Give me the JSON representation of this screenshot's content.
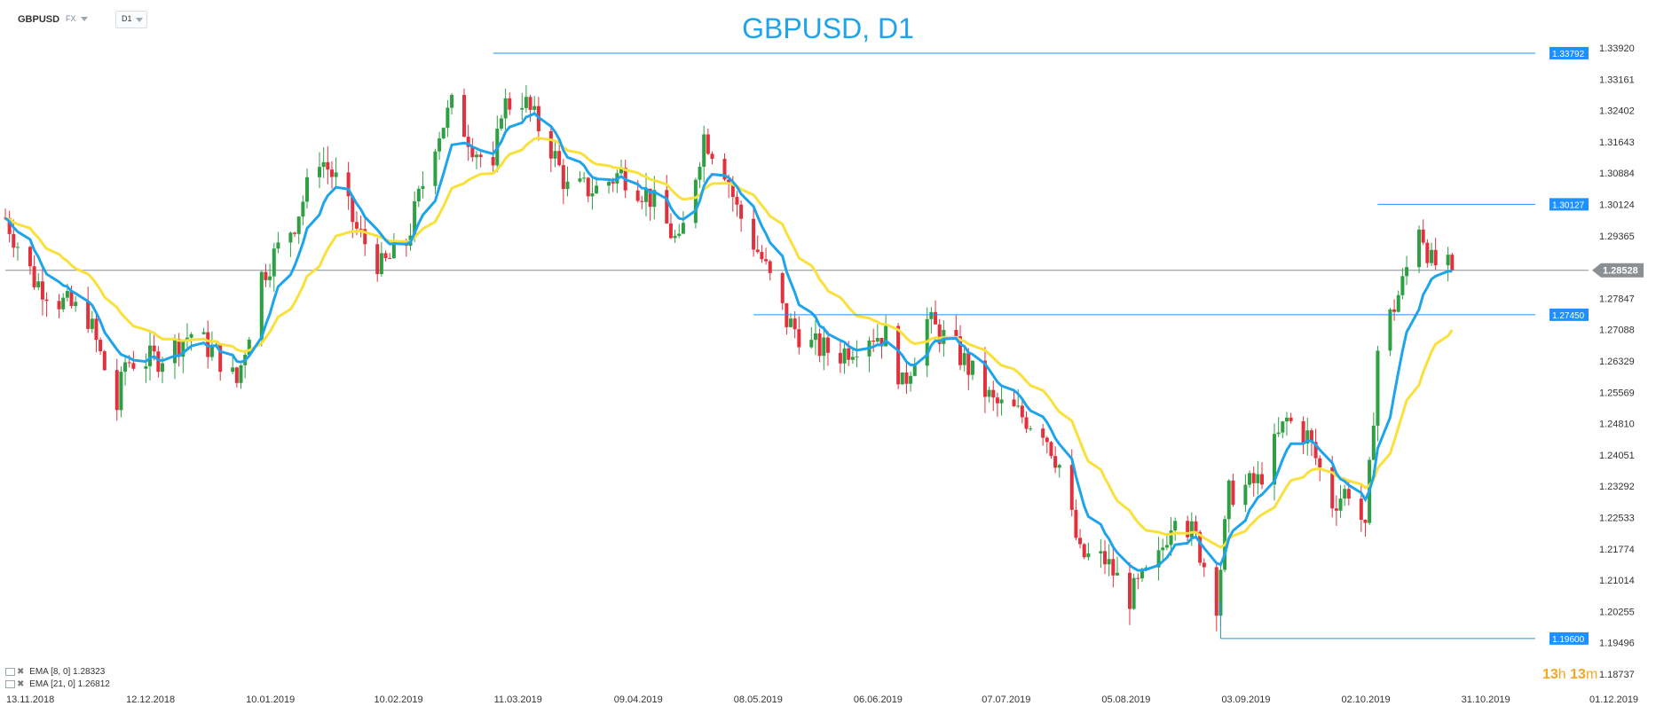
{
  "toolbar": {
    "symbol": "GBPUSD",
    "market": "FX",
    "timeframe": "D1"
  },
  "legend": [
    {
      "label": "EMA",
      "params": "[8, 0]",
      "value": "1.28323",
      "color": "#1ea4ea"
    },
    {
      "label": "EMA",
      "params": "[21, 0]",
      "value": "1.26812",
      "color": "#f9e03a"
    }
  ],
  "timer": {
    "hours": "13",
    "hours_unit": "h",
    "minutes": "13",
    "minutes_unit": "m"
  },
  "colors": {
    "up": "#2ea043",
    "down": "#e0313c",
    "ema_fast": "#1ea4ea",
    "ema_slow": "#f9e03a",
    "level": "#1e90ff",
    "title": "#1ea4ea"
  },
  "chart_data": {
    "type": "candlestick",
    "title": "GBPUSD, D1",
    "y_ticks": [
      "1.33920",
      "1.33161",
      "1.32402",
      "1.31643",
      "1.30884",
      "1.30124",
      "1.29365",
      "1.28606",
      "1.27847",
      "1.27088",
      "1.26329",
      "1.25569",
      "1.24810",
      "1.24051",
      "1.23292",
      "1.22533",
      "1.21774",
      "1.21014",
      "1.20255",
      "1.19496",
      "1.18737"
    ],
    "x_ticks": [
      "13.11.2018",
      "12.12.2018",
      "10.01.2019",
      "10.02.2019",
      "11.03.2019",
      "09.04.2019",
      "08.05.2019",
      "06.06.2019",
      "07.07.2019",
      "05.08.2019",
      "03.09.2019",
      "02.10.2019",
      "31.10.2019",
      "01.12.2019"
    ],
    "ylim": [
      1.18737,
      1.3392
    ],
    "x_domain": [
      "2018-11-13",
      "2019-12-01"
    ],
    "current_price": "1.28528",
    "levels": [
      {
        "value": 1.33792,
        "label": "1.33792",
        "start": "2019-03-11"
      },
      {
        "value": 1.30127,
        "label": "1.30127",
        "start": "2019-10-11"
      },
      {
        "value": 1.2745,
        "label": "1.27450",
        "start": "2019-05-13"
      },
      {
        "value": 1.196,
        "label": "1.19600",
        "start": "2019-09-03"
      }
    ],
    "close_anchors": [
      [
        "2018-11-13",
        1.298
      ],
      [
        "2018-11-20",
        1.283
      ],
      [
        "2018-11-26",
        1.278
      ],
      [
        "2018-12-03",
        1.274
      ],
      [
        "2018-12-10",
        1.252
      ],
      [
        "2018-12-12",
        1.263
      ],
      [
        "2018-12-20",
        1.264
      ],
      [
        "2018-12-28",
        1.27
      ],
      [
        "2019-01-03",
        1.265
      ],
      [
        "2019-01-08",
        1.258
      ],
      [
        "2019-01-14",
        1.284
      ],
      [
        "2019-01-22",
        1.297
      ],
      [
        "2019-01-28",
        1.313
      ],
      [
        "2019-02-01",
        1.307
      ],
      [
        "2019-02-06",
        1.295
      ],
      [
        "2019-02-12",
        1.286
      ],
      [
        "2019-02-18",
        1.292
      ],
      [
        "2019-02-25",
        1.317
      ],
      [
        "2019-03-01",
        1.325
      ],
      [
        "2019-03-06",
        1.316
      ],
      [
        "2019-03-11",
        1.308
      ],
      [
        "2019-03-13",
        1.325
      ],
      [
        "2019-03-18",
        1.327
      ],
      [
        "2019-03-25",
        1.315
      ],
      [
        "2019-03-29",
        1.305
      ],
      [
        "2019-04-05",
        1.305
      ],
      [
        "2019-04-11",
        1.309
      ],
      [
        "2019-04-18",
        1.303
      ],
      [
        "2019-04-25",
        1.291
      ],
      [
        "2019-05-01",
        1.318
      ],
      [
        "2019-05-06",
        1.31
      ],
      [
        "2019-05-09",
        1.3
      ],
      [
        "2019-05-15",
        1.288
      ],
      [
        "2019-05-21",
        1.273
      ],
      [
        "2019-05-27",
        1.267
      ],
      [
        "2019-06-03",
        1.265
      ],
      [
        "2019-06-10",
        1.27
      ],
      [
        "2019-06-15",
        1.269
      ],
      [
        "2019-06-18",
        1.257
      ],
      [
        "2019-06-24",
        1.273
      ],
      [
        "2019-07-01",
        1.266
      ],
      [
        "2019-07-10",
        1.253
      ],
      [
        "2019-07-15",
        1.251
      ],
      [
        "2019-07-22",
        1.247
      ],
      [
        "2019-07-26",
        1.238
      ],
      [
        "2019-07-31",
        1.216
      ],
      [
        "2019-08-06",
        1.215
      ],
      [
        "2019-08-12",
        1.206
      ],
      [
        "2019-08-19",
        1.215
      ],
      [
        "2019-08-23",
        1.228
      ],
      [
        "2019-08-28",
        1.22
      ],
      [
        "2019-09-02",
        1.205
      ],
      [
        "2019-09-05",
        1.231
      ],
      [
        "2019-09-12",
        1.234
      ],
      [
        "2019-09-19",
        1.249
      ],
      [
        "2019-09-24",
        1.245
      ],
      [
        "2019-09-30",
        1.229
      ],
      [
        "2019-10-05",
        1.233
      ],
      [
        "2019-10-08",
        1.221
      ],
      [
        "2019-10-11",
        1.266
      ],
      [
        "2019-10-17",
        1.282
      ],
      [
        "2019-10-21",
        1.297
      ],
      [
        "2019-10-24",
        1.287
      ],
      [
        "2019-10-29",
        1.2853
      ]
    ]
  }
}
